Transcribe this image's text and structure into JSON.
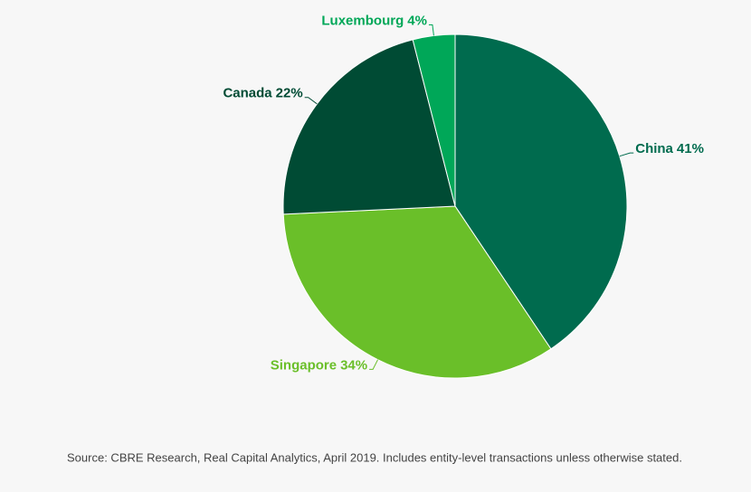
{
  "chart_data": {
    "type": "pie",
    "categories": [
      "China",
      "Singapore",
      "Canada",
      "Luxembourg"
    ],
    "values": [
      41,
      34,
      22,
      4
    ],
    "value_labels": [
      "41%",
      "34%",
      "22%",
      "4%"
    ],
    "colors": [
      "#006b4e",
      "#6abf29",
      "#004b34",
      "#00a758"
    ],
    "source": "Source: CBRE Research, Real Capital Analytics, April 2019. Includes entity-level transactions unless otherwise stated."
  }
}
